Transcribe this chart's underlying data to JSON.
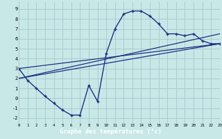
{
  "title": "Graphe des températures (°c)",
  "bg_color": "#c8e8e8",
  "grid_color": "#aacccc",
  "line_color": "#1a3080",
  "bar_color": "#1a3080",
  "xlim": [
    0,
    23
  ],
  "ylim": [
    -2.5,
    9.7
  ],
  "yticks": [
    -2,
    -1,
    0,
    1,
    2,
    3,
    4,
    5,
    6,
    7,
    8,
    9
  ],
  "xticks": [
    0,
    1,
    2,
    3,
    4,
    5,
    6,
    7,
    8,
    9,
    10,
    11,
    12,
    13,
    14,
    15,
    16,
    17,
    18,
    19,
    20,
    21,
    22,
    23
  ],
  "curve_x": [
    0,
    1,
    2,
    3,
    4,
    5,
    6,
    7,
    8,
    9,
    10,
    11,
    12,
    13,
    14,
    15,
    16,
    17,
    18,
    19,
    20,
    21,
    22,
    23
  ],
  "curve_y": [
    3.0,
    1.8,
    1.0,
    0.2,
    -0.5,
    -1.2,
    -1.7,
    -1.7,
    1.3,
    -0.3,
    4.5,
    7.0,
    8.5,
    8.8,
    8.8,
    8.3,
    7.5,
    6.5,
    6.5,
    6.3,
    6.5,
    5.8,
    5.5,
    5.5
  ],
  "line1_x": [
    0,
    23
  ],
  "line1_y": [
    2.0,
    5.5
  ],
  "line2_x": [
    0,
    23
  ],
  "line2_y": [
    2.0,
    6.5
  ],
  "line3_x": [
    0,
    23
  ],
  "line3_y": [
    3.0,
    5.5
  ]
}
